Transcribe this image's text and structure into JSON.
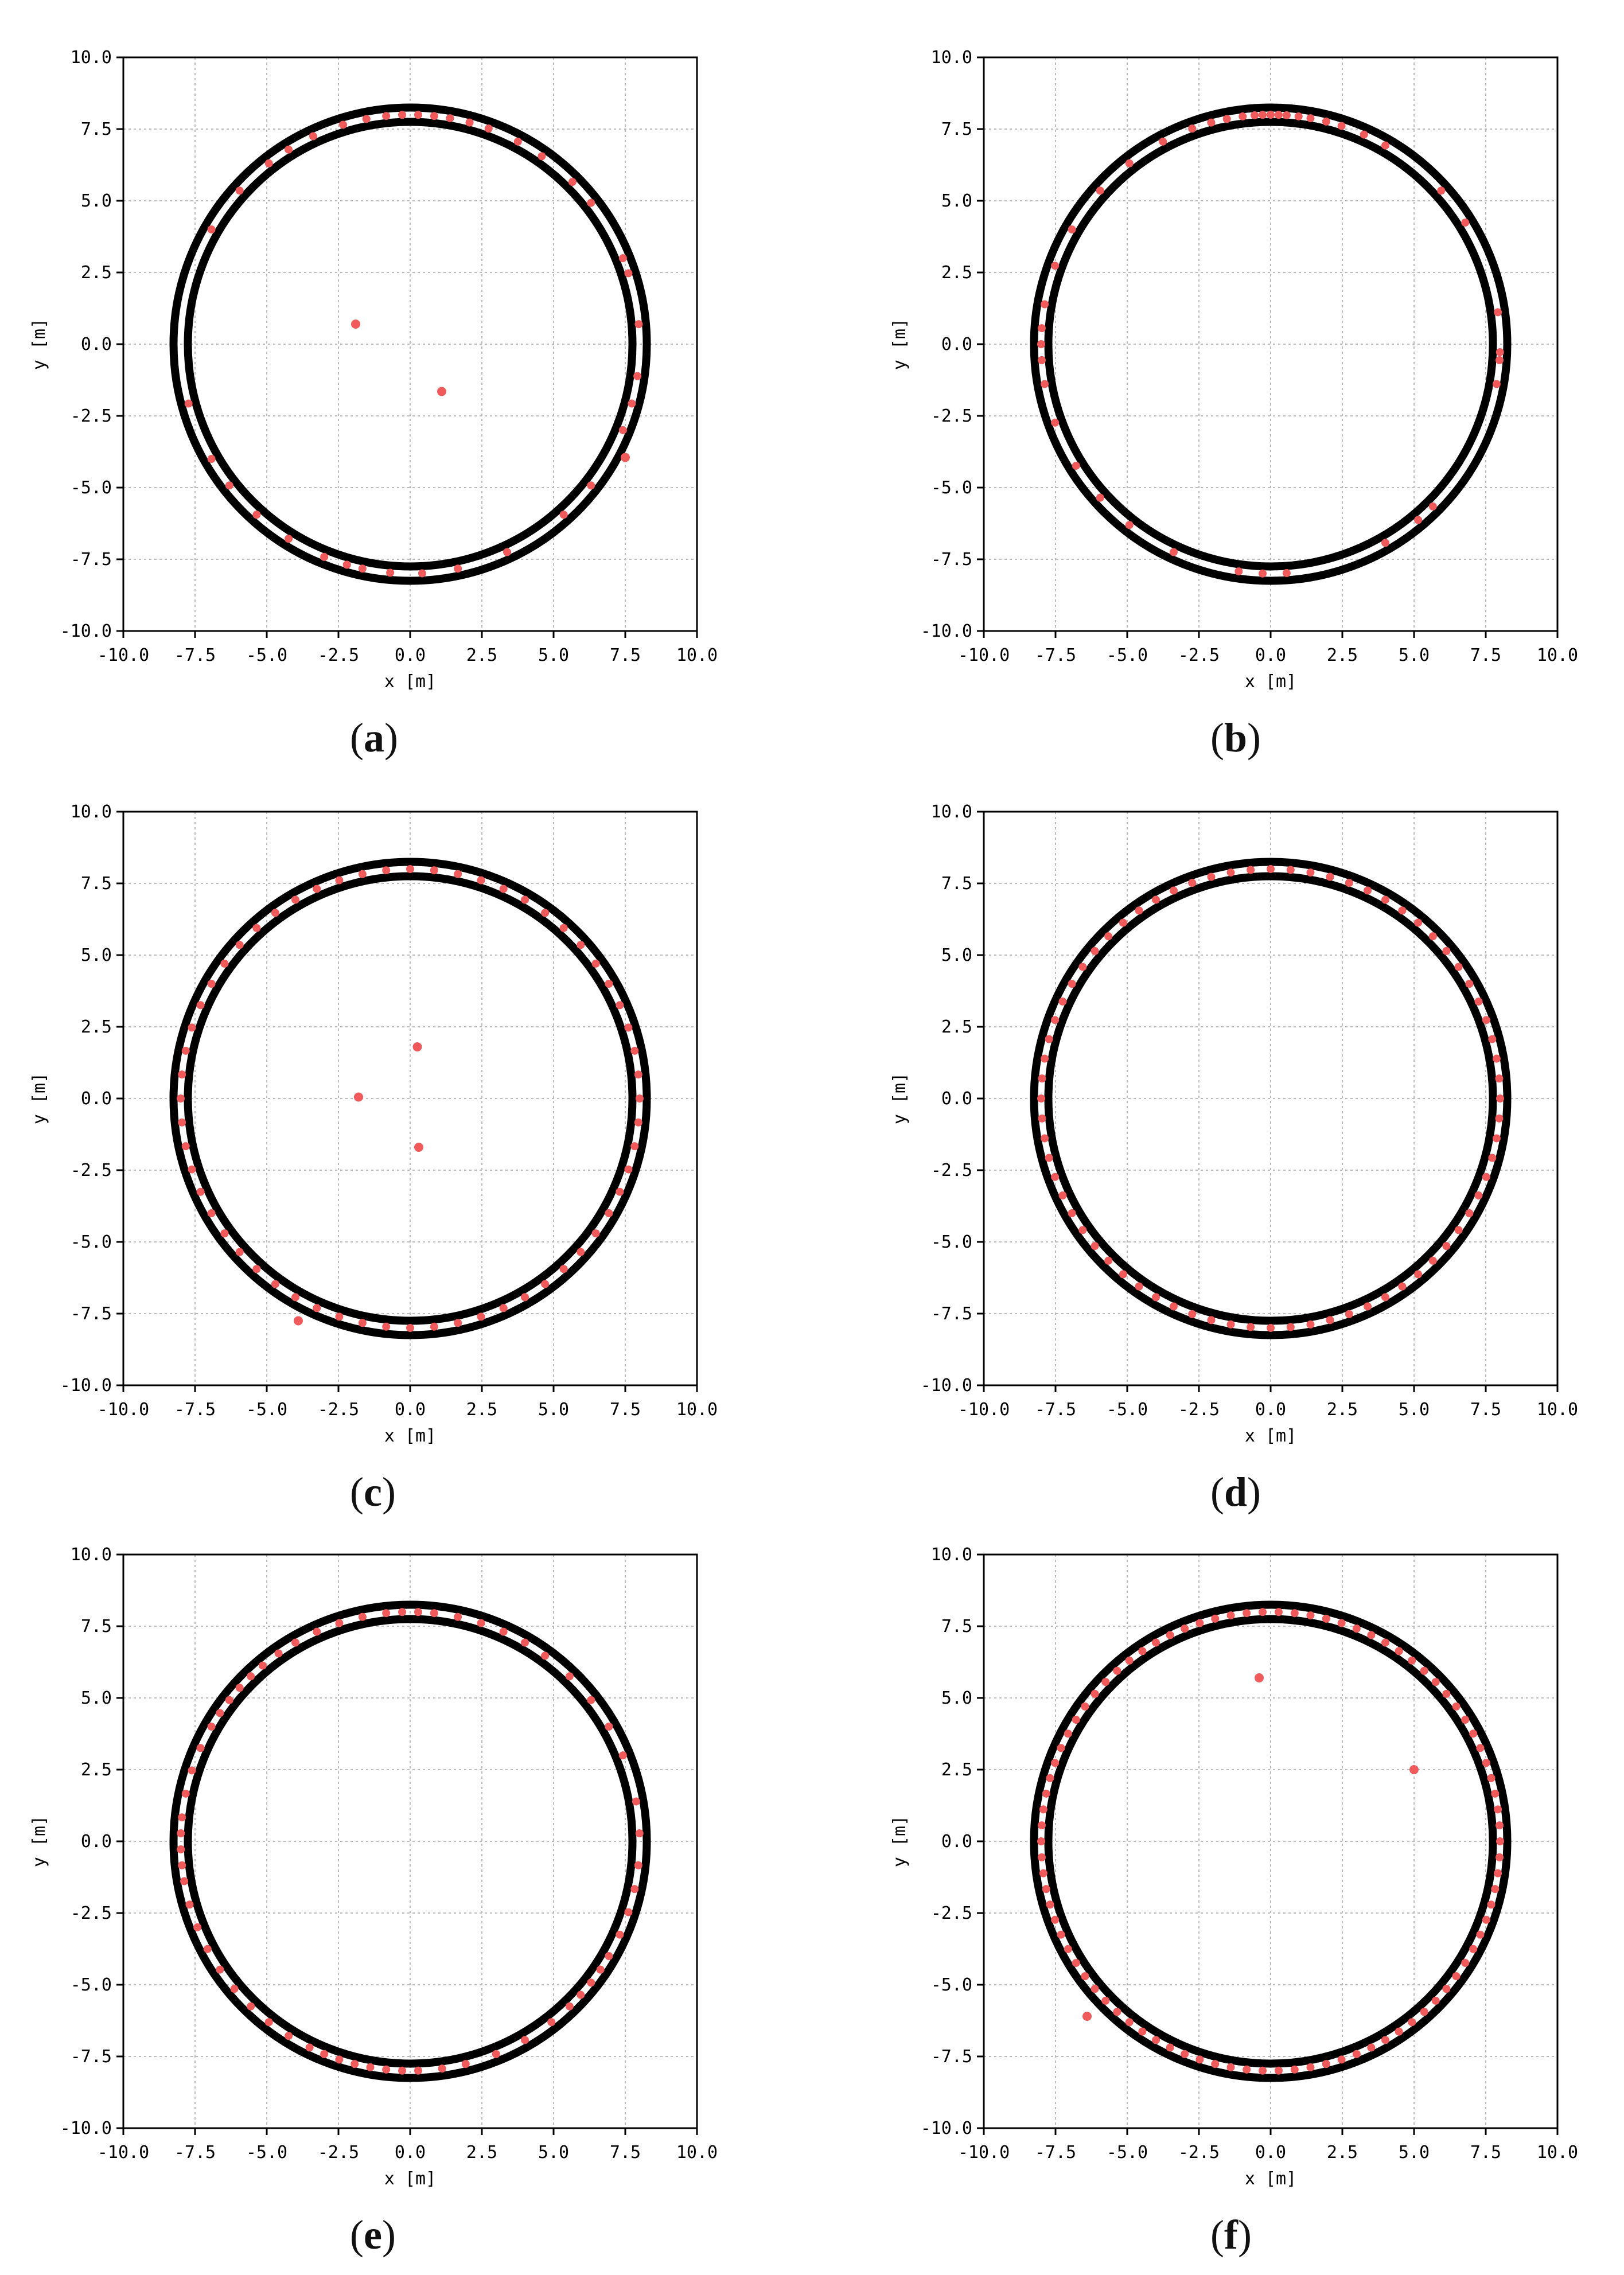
{
  "figure": {
    "panels": [
      {
        "id": "a",
        "caption_letter": "a"
      },
      {
        "id": "b",
        "caption_letter": "b"
      },
      {
        "id": "c",
        "caption_letter": "c"
      },
      {
        "id": "d",
        "caption_letter": "d"
      },
      {
        "id": "e",
        "caption_letter": "e"
      },
      {
        "id": "f",
        "caption_letter": "f"
      }
    ]
  },
  "chart_data": [
    {
      "panel": "a",
      "type": "scatter",
      "title": "",
      "xlabel": "x [m]",
      "ylabel": "y [m]",
      "xlim": [
        -10,
        10
      ],
      "ylim": [
        -10,
        10
      ],
      "xticks": [
        "-10.0",
        "-7.5",
        "-5.0",
        "-2.5",
        "0.0",
        "2.5",
        "5.0",
        "7.5",
        "10.0"
      ],
      "yticks": [
        "-10.0",
        "-7.5",
        "-5.0",
        "-2.5",
        "0.0",
        "2.5",
        "5.0",
        "7.5",
        "10.0"
      ],
      "grid": true,
      "colors": {
        "boundary": "#000000",
        "points": "#f05a5a",
        "grid": "#bbbbbb"
      },
      "boundaries": [
        {
          "name": "outer wall",
          "shape": "circle",
          "center": [
            0,
            0
          ],
          "radius": 8.25
        },
        {
          "name": "inner wall",
          "shape": "circle",
          "center": [
            0,
            0
          ],
          "radius": 7.75
        }
      ],
      "ring_point_angles_deg": [
        5,
        18,
        22,
        38,
        45,
        55,
        62,
        70,
        75,
        80,
        84,
        88,
        92,
        96,
        101,
        107,
        115,
        122,
        128,
        138,
        150,
        195,
        210,
        218,
        228,
        238,
        248,
        254,
        258,
        265,
        273,
        282,
        295,
        312,
        322,
        338,
        345,
        352
      ],
      "ring_point_radius": 8.0,
      "interior_points": [
        [
          -1.9,
          0.7
        ],
        [
          1.1,
          -1.65
        ],
        [
          7.5,
          -3.95
        ]
      ]
    },
    {
      "panel": "b",
      "type": "scatter",
      "title": "",
      "xlabel": "x [m]",
      "ylabel": "y [m]",
      "xlim": [
        -10,
        10
      ],
      "ylim": [
        -10,
        10
      ],
      "xticks": [
        "-10.0",
        "-7.5",
        "-5.0",
        "-2.5",
        "0.0",
        "2.5",
        "5.0",
        "7.5",
        "10.0"
      ],
      "yticks": [
        "-10.0",
        "-7.5",
        "-5.0",
        "-2.5",
        "0.0",
        "2.5",
        "5.0",
        "7.5",
        "10.0"
      ],
      "grid": true,
      "colors": {
        "boundary": "#000000",
        "points": "#f05a5a",
        "grid": "#bbbbbb"
      },
      "boundaries": [
        {
          "name": "outer wall",
          "shape": "circle",
          "center": [
            0,
            0
          ],
          "radius": 8.25
        },
        {
          "name": "inner wall",
          "shape": "circle",
          "center": [
            0,
            0
          ],
          "radius": 7.75
        }
      ],
      "ring_point_angles_deg": [
        8,
        32,
        42,
        60,
        66,
        72,
        76,
        80,
        83,
        86,
        88,
        90,
        92,
        94,
        97,
        101,
        105,
        110,
        118,
        128,
        138,
        150,
        160,
        170,
        176,
        180,
        184,
        190,
        200,
        212,
        222,
        232,
        245,
        262,
        268,
        274,
        300,
        310,
        315,
        350,
        356,
        358
      ],
      "ring_point_radius": 8.0,
      "interior_points": []
    },
    {
      "panel": "c",
      "type": "scatter",
      "title": "",
      "xlabel": "x [m]",
      "ylabel": "y [m]",
      "xlim": [
        -10,
        10
      ],
      "ylim": [
        -10,
        10
      ],
      "xticks": [
        "-10.0",
        "-7.5",
        "-5.0",
        "-2.5",
        "0.0",
        "2.5",
        "5.0",
        "7.5",
        "10.0"
      ],
      "yticks": [
        "-10.0",
        "-7.5",
        "-5.0",
        "-2.5",
        "0.0",
        "2.5",
        "5.0",
        "7.5",
        "10.0"
      ],
      "grid": true,
      "colors": {
        "boundary": "#000000",
        "points": "#f05a5a",
        "grid": "#bbbbbb"
      },
      "boundaries": [
        {
          "name": "outer wall",
          "shape": "circle",
          "center": [
            0,
            0
          ],
          "radius": 8.25
        },
        {
          "name": "inner wall",
          "shape": "circle",
          "center": [
            0,
            0
          ],
          "radius": 7.75
        }
      ],
      "ring_point_angles_deg": [
        0,
        6,
        12,
        18,
        24,
        30,
        36,
        42,
        48,
        54,
        60,
        66,
        72,
        78,
        84,
        90,
        96,
        102,
        108,
        114,
        120,
        126,
        132,
        138,
        144,
        150,
        156,
        162,
        168,
        174,
        180,
        186,
        192,
        198,
        204,
        210,
        216,
        222,
        228,
        234,
        240,
        246,
        252,
        258,
        264,
        270,
        276,
        282,
        288,
        294,
        300,
        306,
        312,
        318,
        324,
        330,
        336,
        342,
        348,
        354
      ],
      "ring_point_radius": 8.0,
      "interior_points": [
        [
          0.25,
          1.8
        ],
        [
          -1.8,
          0.05
        ],
        [
          0.3,
          -1.7
        ],
        [
          -3.9,
          -7.75
        ]
      ]
    },
    {
      "panel": "d",
      "type": "scatter",
      "title": "",
      "xlabel": "x [m]",
      "ylabel": "y [m]",
      "xlim": [
        -10,
        10
      ],
      "ylim": [
        -10,
        10
      ],
      "xticks": [
        "-10.0",
        "-7.5",
        "-5.0",
        "-2.5",
        "0.0",
        "2.5",
        "5.0",
        "7.5",
        "10.0"
      ],
      "yticks": [
        "-10.0",
        "-7.5",
        "-5.0",
        "-2.5",
        "0.0",
        "2.5",
        "5.0",
        "7.5",
        "10.0"
      ],
      "grid": true,
      "colors": {
        "boundary": "#000000",
        "points": "#f05a5a",
        "grid": "#bbbbbb"
      },
      "boundaries": [
        {
          "name": "outer wall",
          "shape": "circle",
          "center": [
            0,
            0
          ],
          "radius": 8.25
        },
        {
          "name": "inner wall",
          "shape": "circle",
          "center": [
            0,
            0
          ],
          "radius": 7.75
        }
      ],
      "ring_point_angles_deg": [
        0,
        5,
        10,
        15,
        20,
        25,
        30,
        35,
        40,
        45,
        50,
        55,
        60,
        65,
        70,
        75,
        80,
        85,
        90,
        95,
        100,
        105,
        110,
        115,
        120,
        125,
        130,
        135,
        140,
        145,
        150,
        155,
        160,
        165,
        170,
        175,
        180,
        185,
        190,
        195,
        200,
        205,
        210,
        215,
        220,
        225,
        230,
        235,
        240,
        245,
        250,
        255,
        260,
        265,
        270,
        275,
        280,
        285,
        290,
        295,
        300,
        305,
        310,
        315,
        320,
        325,
        330,
        335,
        340,
        345,
        350,
        355
      ],
      "ring_point_radius": 8.0,
      "interior_points": []
    },
    {
      "panel": "e",
      "type": "scatter",
      "title": "",
      "xlabel": "x [m]",
      "ylabel": "y [m]",
      "xlim": [
        -10,
        10
      ],
      "ylim": [
        -10,
        10
      ],
      "xticks": [
        "-10.0",
        "-7.5",
        "-5.0",
        "-2.5",
        "0.0",
        "2.5",
        "5.0",
        "7.5",
        "10.0"
      ],
      "yticks": [
        "-10.0",
        "-7.5",
        "-5.0",
        "-2.5",
        "0.0",
        "2.5",
        "5.0",
        "7.5",
        "10.0"
      ],
      "grid": true,
      "colors": {
        "boundary": "#000000",
        "points": "#f05a5a",
        "grid": "#bbbbbb"
      },
      "boundaries": [
        {
          "name": "outer wall",
          "shape": "circle",
          "center": [
            0,
            0
          ],
          "radius": 8.25
        },
        {
          "name": "inner wall",
          "shape": "circle",
          "center": [
            0,
            0
          ],
          "radius": 7.75
        }
      ],
      "ring_point_angles_deg": [
        2,
        10,
        22,
        30,
        38,
        46,
        54,
        60,
        66,
        72,
        78,
        84,
        88,
        92,
        96,
        102,
        108,
        114,
        120,
        125,
        130,
        134,
        138,
        142,
        146,
        150,
        156,
        162,
        168,
        174,
        178,
        182,
        186,
        190,
        196,
        202,
        208,
        214,
        220,
        226,
        232,
        238,
        244,
        248,
        252,
        256,
        260,
        264,
        268,
        272,
        278,
        284,
        292,
        300,
        308,
        314,
        318,
        322,
        326,
        330,
        336,
        342,
        348,
        354
      ],
      "ring_point_radius": 8.0,
      "interior_points": []
    },
    {
      "panel": "f",
      "type": "scatter",
      "title": "",
      "xlabel": "x [m]",
      "ylabel": "y [m]",
      "xlim": [
        -10,
        10
      ],
      "ylim": [
        -10,
        10
      ],
      "xticks": [
        "-10.0",
        "-7.5",
        "-5.0",
        "-2.5",
        "0.0",
        "2.5",
        "5.0",
        "7.5",
        "10.0"
      ],
      "yticks": [
        "-10.0",
        "-7.5",
        "-5.0",
        "-2.5",
        "0.0",
        "2.5",
        "5.0",
        "7.5",
        "10.0"
      ],
      "grid": true,
      "colors": {
        "boundary": "#000000",
        "points": "#f05a5a",
        "grid": "#bbbbbb"
      },
      "boundaries": [
        {
          "name": "outer wall",
          "shape": "circle",
          "center": [
            0,
            0
          ],
          "radius": 8.25
        },
        {
          "name": "inner wall",
          "shape": "circle",
          "center": [
            0,
            0
          ],
          "radius": 7.75
        }
      ],
      "ring_point_angles_deg": [
        0,
        4,
        8,
        12,
        16,
        20,
        24,
        28,
        32,
        36,
        40,
        44,
        48,
        52,
        56,
        60,
        64,
        68,
        72,
        76,
        80,
        84,
        88,
        92,
        96,
        100,
        104,
        108,
        112,
        116,
        120,
        124,
        128,
        132,
        136,
        140,
        144,
        148,
        152,
        156,
        160,
        164,
        168,
        172,
        176,
        180,
        184,
        188,
        192,
        196,
        200,
        204,
        208,
        212,
        216,
        220,
        224,
        228,
        232,
        236,
        240,
        244,
        248,
        252,
        256,
        260,
        264,
        268,
        272,
        276,
        280,
        284,
        288,
        292,
        296,
        300,
        304,
        308,
        312,
        316,
        320,
        324,
        328,
        332,
        336,
        340,
        344,
        348,
        352,
        356
      ],
      "ring_point_radius": 8.0,
      "interior_points": [
        [
          -0.4,
          5.7
        ],
        [
          5.0,
          2.5
        ],
        [
          -6.4,
          -6.1
        ]
      ]
    }
  ]
}
